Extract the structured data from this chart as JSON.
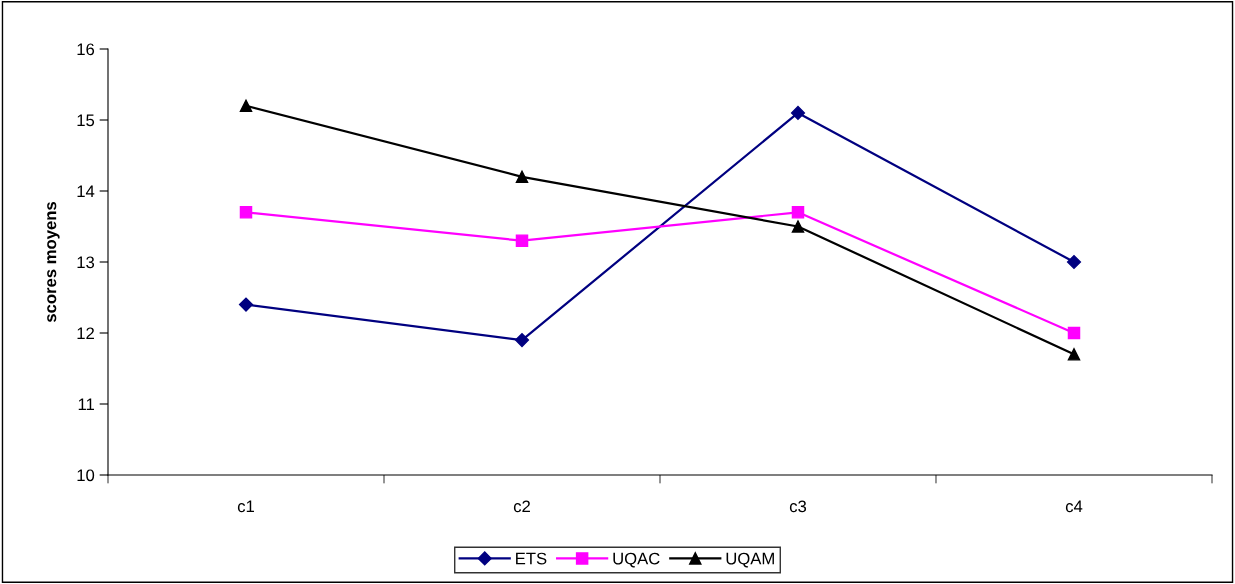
{
  "chart_data": {
    "type": "line",
    "ylabel": "scores moyens",
    "categories": [
      "c1",
      "c2",
      "c3",
      "c4"
    ],
    "series": [
      {
        "name": "ETS",
        "color": "#000080",
        "marker": "diamond",
        "values": [
          12.4,
          11.9,
          15.1,
          13.0
        ]
      },
      {
        "name": "UQAC",
        "color": "#ff00ff",
        "marker": "square",
        "values": [
          13.7,
          13.3,
          13.7,
          12.0
        ]
      },
      {
        "name": "UQAM",
        "color": "#000000",
        "marker": "triangle",
        "values": [
          15.2,
          14.2,
          13.5,
          11.7
        ]
      }
    ],
    "ylim": [
      10,
      16
    ],
    "yticks": [
      10,
      11,
      12,
      13,
      14,
      15,
      16
    ],
    "grid": false,
    "legend": "bottom",
    "line_style": "solid"
  }
}
